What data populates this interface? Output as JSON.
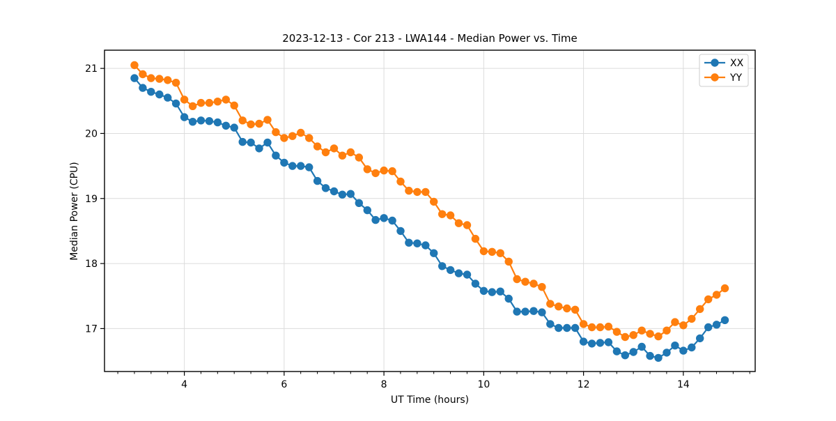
{
  "figure_background": "#ffffff",
  "chart_data": {
    "type": "line",
    "title": "2023-12-13 - Cor 213 - LWA144 - Median Power vs. Time",
    "xlabel": "UT Time (hours)",
    "ylabel": "Median Power (CPU)",
    "xlim": [
      2.4,
      15.44
    ],
    "ylim": [
      16.34,
      21.28
    ],
    "x_ticks": [
      4,
      6,
      8,
      10,
      12,
      14
    ],
    "y_ticks": [
      17,
      18,
      19,
      20,
      21
    ],
    "x_minor_tick_step": 0.3333,
    "grid": true,
    "grid_color": "#dcdcdc",
    "legend_position": "upper right",
    "x": [
      3.0,
      3.167,
      3.333,
      3.5,
      3.667,
      3.833,
      4.0,
      4.167,
      4.333,
      4.5,
      4.667,
      4.833,
      5.0,
      5.167,
      5.333,
      5.5,
      5.667,
      5.833,
      6.0,
      6.167,
      6.333,
      6.5,
      6.667,
      6.833,
      7.0,
      7.167,
      7.333,
      7.5,
      7.667,
      7.833,
      8.0,
      8.167,
      8.333,
      8.5,
      8.667,
      8.833,
      9.0,
      9.167,
      9.333,
      9.5,
      9.667,
      9.833,
      10.0,
      10.167,
      10.333,
      10.5,
      10.667,
      10.833,
      11.0,
      11.167,
      11.333,
      11.5,
      11.667,
      11.833,
      12.0,
      12.167,
      12.333,
      12.5,
      12.667,
      12.833,
      13.0,
      13.167,
      13.333,
      13.5,
      13.667,
      13.833,
      14.0,
      14.167,
      14.333,
      14.5,
      14.667,
      14.833
    ],
    "series": [
      {
        "name": "XX",
        "color": "#1f77b4",
        "values": [
          20.85,
          20.7,
          20.64,
          20.6,
          20.55,
          20.46,
          20.25,
          20.18,
          20.2,
          20.19,
          20.17,
          20.12,
          20.09,
          19.87,
          19.86,
          19.77,
          19.86,
          19.66,
          19.55,
          19.5,
          19.5,
          19.48,
          19.27,
          19.16,
          19.11,
          19.06,
          19.07,
          18.93,
          18.82,
          18.67,
          18.7,
          18.66,
          18.5,
          18.32,
          18.31,
          18.28,
          18.16,
          17.96,
          17.9,
          17.85,
          17.83,
          17.69,
          17.58,
          17.56,
          17.57,
          17.46,
          17.26,
          17.26,
          17.27,
          17.25,
          17.07,
          17.01,
          17.01,
          17.01,
          16.8,
          16.77,
          16.78,
          16.79,
          16.65,
          16.59,
          16.64,
          16.72,
          16.58,
          16.55,
          16.63,
          16.74,
          16.66,
          16.71,
          16.85,
          17.02,
          17.06,
          17.13
        ]
      },
      {
        "name": "YY",
        "color": "#ff7f0e",
        "values": [
          21.05,
          20.91,
          20.85,
          20.84,
          20.82,
          20.78,
          20.52,
          20.42,
          20.47,
          20.47,
          20.49,
          20.52,
          20.43,
          20.2,
          20.14,
          20.15,
          20.21,
          20.02,
          19.93,
          19.96,
          20.01,
          19.93,
          19.8,
          19.71,
          19.77,
          19.66,
          19.71,
          19.63,
          19.45,
          19.39,
          19.43,
          19.42,
          19.26,
          19.12,
          19.1,
          19.1,
          18.95,
          18.76,
          18.74,
          18.62,
          18.59,
          18.38,
          18.19,
          18.18,
          18.16,
          18.03,
          17.76,
          17.72,
          17.69,
          17.64,
          17.38,
          17.34,
          17.31,
          17.29,
          17.07,
          17.02,
          17.02,
          17.03,
          16.95,
          16.87,
          16.9,
          16.97,
          16.92,
          16.88,
          16.97,
          17.1,
          17.05,
          17.15,
          17.3,
          17.45,
          17.52,
          17.62
        ]
      }
    ]
  }
}
